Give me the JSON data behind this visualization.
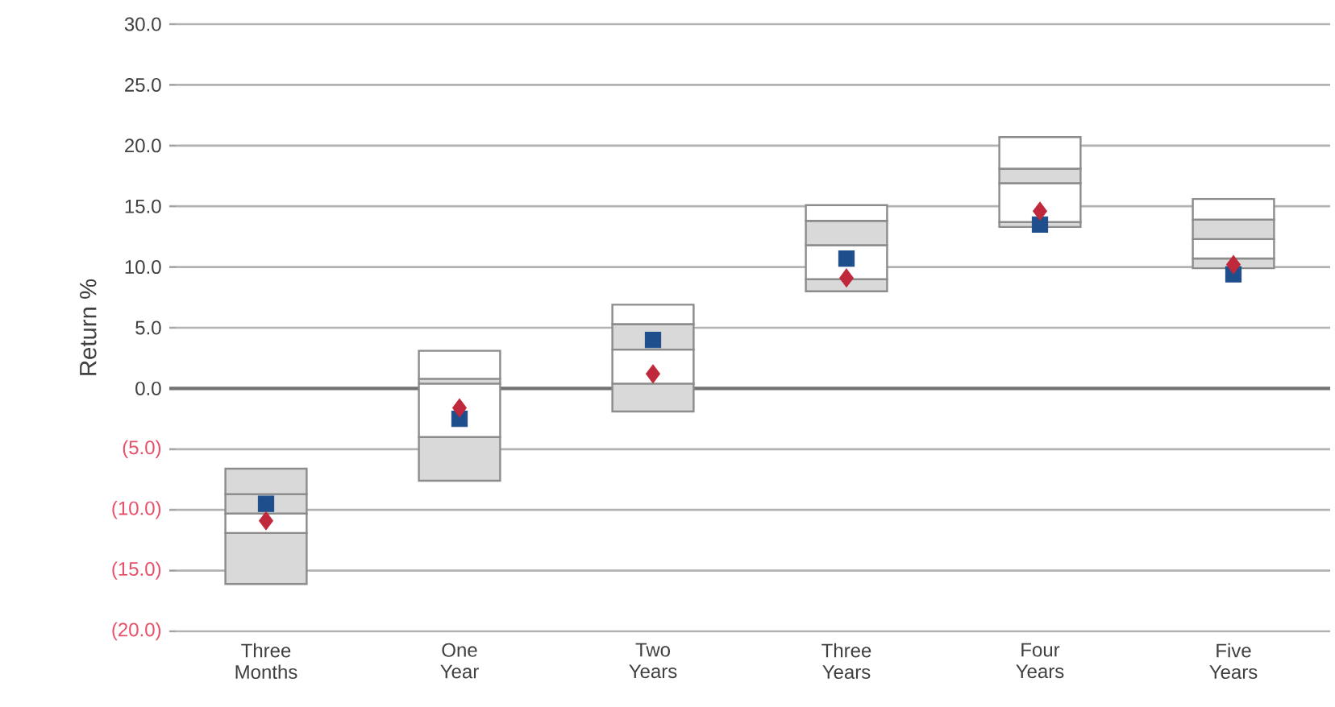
{
  "chart_data": {
    "type": "bar",
    "ylabel": "Return %",
    "categories": [
      "Three Months",
      "One Year",
      "Two Years",
      "Three Years",
      "Four Years",
      "Five Years"
    ],
    "series": [
      {
        "colors": [
          "#d9d9d9",
          "#d9d9d9",
          "#d9d9d9",
          "#d9d9d9",
          "#d9d9d9",
          "#d9d9d9"
        ],
        "base": [
          -16.1,
          -7.6,
          -1.9,
          8.0,
          13.3,
          9.9
        ],
        "values": [
          4.2,
          3.6,
          2.3,
          1.0,
          0.4,
          0.8
        ]
      },
      {
        "colors": [
          "#ffffff",
          "#ffffff",
          "#ffffff",
          "#ffffff",
          "#ffffff",
          "#ffffff"
        ],
        "base": [
          -11.9,
          -4.0,
          0.4,
          9.0,
          13.7,
          10.7
        ],
        "values": [
          1.6,
          4.4,
          2.8,
          2.8,
          3.2,
          1.6
        ]
      },
      {
        "colors": [
          "#d9d9d9",
          "#d9d9d9",
          "#d9d9d9",
          "#d9d9d9",
          "#d9d9d9",
          "#d9d9d9"
        ],
        "base": [
          -10.3,
          0.4,
          3.2,
          11.8,
          16.9,
          12.3
        ],
        "values": [
          1.6,
          0.4,
          2.1,
          2.0,
          1.2,
          1.6
        ]
      },
      {
        "colors": [
          "#d9d9d9",
          "#ffffff",
          "#ffffff",
          "#ffffff",
          "#ffffff",
          "#ffffff"
        ],
        "base": [
          -8.7,
          0.8,
          5.3,
          13.8,
          18.1,
          13.9
        ],
        "values": [
          2.1,
          2.3,
          1.6,
          1.3,
          2.6,
          1.7
        ]
      },
      {
        "type": "scatter",
        "marker": "square",
        "color": "#1f4e8c",
        "x": [
          "Three Months",
          "One Year",
          "Two Years",
          "Three Years",
          "Four Years",
          "Five Years"
        ],
        "values": [
          -9.5,
          -2.5,
          4.0,
          10.7,
          13.5,
          9.4
        ]
      },
      {
        "type": "scatter",
        "marker": "diamond",
        "color": "#c0293b",
        "x": [
          "Three Months",
          "One Year",
          "Two Years",
          "Three Years",
          "Four Years",
          "Five Years"
        ],
        "values": [
          -10.9,
          -1.6,
          1.2,
          9.1,
          14.6,
          10.2
        ]
      }
    ],
    "ylim": [
      -20,
      30
    ],
    "yticks": [
      {
        "value": -20,
        "label": "(20.0)"
      },
      {
        "value": -15,
        "label": "(15.0)"
      },
      {
        "value": -10,
        "label": "(10.0)"
      },
      {
        "value": -5,
        "label": "(5.0)"
      },
      {
        "value": 0,
        "label": "0.0"
      },
      {
        "value": 5,
        "label": "5.0"
      },
      {
        "value": 10,
        "label": "10.0"
      },
      {
        "value": 15,
        "label": "15.0"
      },
      {
        "value": 20,
        "label": "20.0"
      },
      {
        "value": 25,
        "label": "25.0"
      },
      {
        "value": 30,
        "label": "30.0"
      }
    ],
    "grid": "y"
  }
}
